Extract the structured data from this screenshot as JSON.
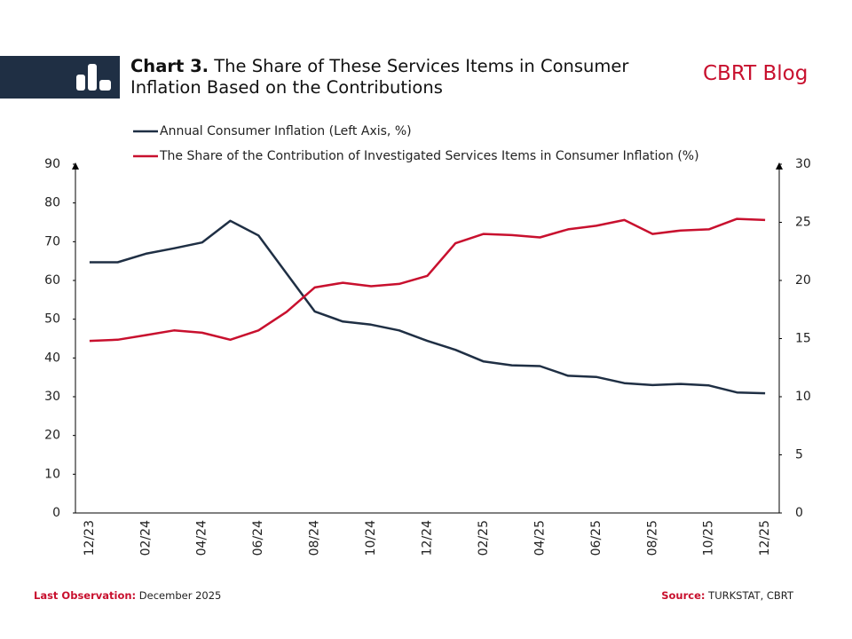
{
  "chart_data": {
    "type": "line",
    "title_bold": "Chart 3.",
    "title": "The Share of These Services Items in Consumer Inflation Based on the Contributions",
    "brand": "CBRT Blog",
    "categories": [
      "12/23",
      null,
      "02/24",
      null,
      "04/24",
      null,
      "06/24",
      null,
      "08/24",
      null,
      "10/24",
      null,
      "12/24",
      null,
      "02/25",
      null,
      "04/25",
      null,
      "06/25",
      null,
      "08/25",
      null,
      "10/25",
      null,
      "12/25"
    ],
    "series": [
      {
        "name": "Annual Consumer Inflation (Left Axis, %)",
        "color": "#1f2f44",
        "axis": "y",
        "values": [
          64.7,
          64.7,
          66.9,
          68.3,
          69.8,
          75.4,
          71.6,
          61.8,
          52.0,
          49.4,
          48.6,
          47.1,
          44.4,
          42.1,
          39.1,
          38.1,
          37.9,
          35.4,
          35.1,
          33.5,
          33.0,
          33.3,
          32.9,
          31.1,
          30.9
        ]
      },
      {
        "name": "The Share of the Contribution of Investigated Services Items in Consumer Inflation (%)",
        "color": "#c8102e",
        "axis": "y2",
        "values": [
          14.8,
          14.9,
          15.3,
          15.7,
          15.5,
          14.9,
          15.7,
          17.3,
          19.4,
          19.8,
          19.5,
          19.7,
          20.4,
          23.2,
          24.0,
          23.9,
          23.7,
          24.4,
          24.7,
          25.2,
          24.0,
          24.3,
          24.4,
          25.3,
          25.2
        ]
      }
    ],
    "ylim": [
      0,
      90
    ],
    "yticks": [
      0,
      10,
      20,
      30,
      40,
      50,
      60,
      70,
      80,
      90
    ],
    "y2lim": [
      0,
      30
    ],
    "y2ticks": [
      0,
      5,
      10,
      15,
      20,
      25,
      30
    ],
    "footer_left_label": "Last Observation:",
    "footer_left": "December 2025",
    "footer_right_label": "Source:",
    "footer_right": "TURKSTAT, CBRT"
  }
}
